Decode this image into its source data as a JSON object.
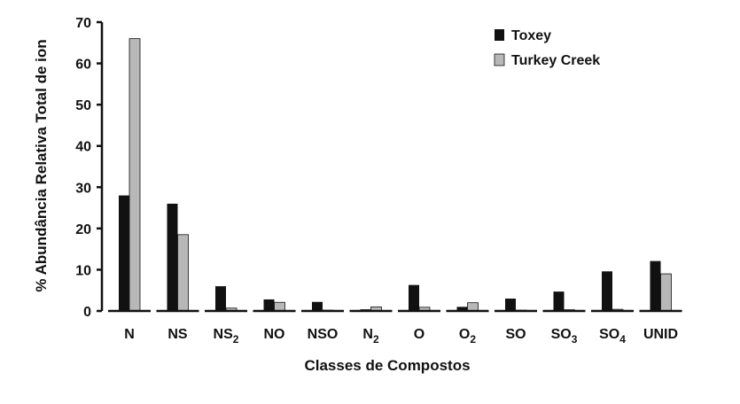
{
  "chart_data": {
    "type": "bar",
    "title": "",
    "xlabel": "Classes de Compostos",
    "ylabel": "% Abundância Relativa Total de ion",
    "ylim": [
      0,
      70
    ],
    "yticks": [
      0,
      10,
      20,
      30,
      40,
      50,
      60,
      70
    ],
    "grid": false,
    "legend_position": "top-right",
    "categories": [
      {
        "label": "N",
        "sub": ""
      },
      {
        "label": "NS",
        "sub": ""
      },
      {
        "label": "NS",
        "sub": "2"
      },
      {
        "label": "NO",
        "sub": ""
      },
      {
        "label": "NSO",
        "sub": ""
      },
      {
        "label": "N",
        "sub": "2"
      },
      {
        "label": "O",
        "sub": ""
      },
      {
        "label": "O",
        "sub": "2"
      },
      {
        "label": "SO",
        "sub": ""
      },
      {
        "label": "SO",
        "sub": "3"
      },
      {
        "label": "SO",
        "sub": "4"
      },
      {
        "label": "UNID",
        "sub": ""
      }
    ],
    "series": [
      {
        "name": "Toxey",
        "color": "#111111",
        "values": [
          28,
          26,
          6,
          2.8,
          2.2,
          0.4,
          6.3,
          1.0,
          3.0,
          4.7,
          9.6,
          12.1
        ]
      },
      {
        "name": "Turkey Creek",
        "color": "#b8b8b8",
        "values": [
          66,
          18.5,
          0.7,
          2.1,
          0.2,
          1.0,
          0.9,
          2.0,
          0.2,
          0.3,
          0.4,
          9.0
        ]
      }
    ]
  }
}
